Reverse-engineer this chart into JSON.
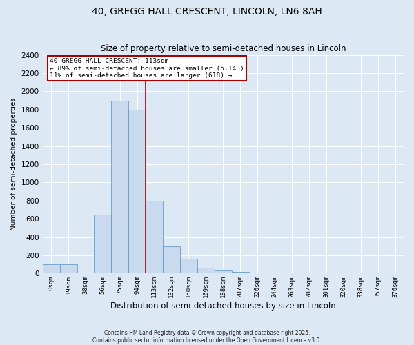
{
  "title": "40, GREGG HALL CRESCENT, LINCOLN, LN6 8AH",
  "subtitle": "Size of property relative to semi-detached houses in Lincoln",
  "xlabel": "Distribution of semi-detached houses by size in Lincoln",
  "ylabel": "Number of semi-detached properties",
  "bar_color": "#c9d9ee",
  "bar_edge_color": "#6b9bc8",
  "bar_labels": [
    "0sqm",
    "19sqm",
    "38sqm",
    "56sqm",
    "75sqm",
    "94sqm",
    "113sqm",
    "132sqm",
    "150sqm",
    "169sqm",
    "188sqm",
    "207sqm",
    "226sqm",
    "244sqm",
    "263sqm",
    "282sqm",
    "301sqm",
    "320sqm",
    "338sqm",
    "357sqm",
    "376sqm"
  ],
  "bar_values": [
    100,
    100,
    0,
    650,
    1900,
    1800,
    800,
    300,
    160,
    60,
    30,
    20,
    10,
    5,
    0,
    0,
    0,
    0,
    0,
    0,
    0
  ],
  "ylim": [
    0,
    2400
  ],
  "marker_bar_index": 6,
  "marker_label": "40 GREGG HALL CRESCENT: 113sqm",
  "annotation_line1": "← 89% of semi-detached houses are smaller (5,143)",
  "annotation_line2": "11% of semi-detached houses are larger (618) →",
  "box_color": "#ffffff",
  "box_edge_color": "#aa0000",
  "vline_color": "#aa0000",
  "background_color": "#dde8f5",
  "plot_bg_color": "#dde8f5",
  "footer1": "Contains HM Land Registry data © Crown copyright and database right 2025.",
  "footer2": "Contains public sector information licensed under the Open Government Licence v3.0.",
  "yticks": [
    0,
    200,
    400,
    600,
    800,
    1000,
    1200,
    1400,
    1600,
    1800,
    2000,
    2200,
    2400
  ],
  "title_fontsize": 10,
  "bar_width": 1.0
}
